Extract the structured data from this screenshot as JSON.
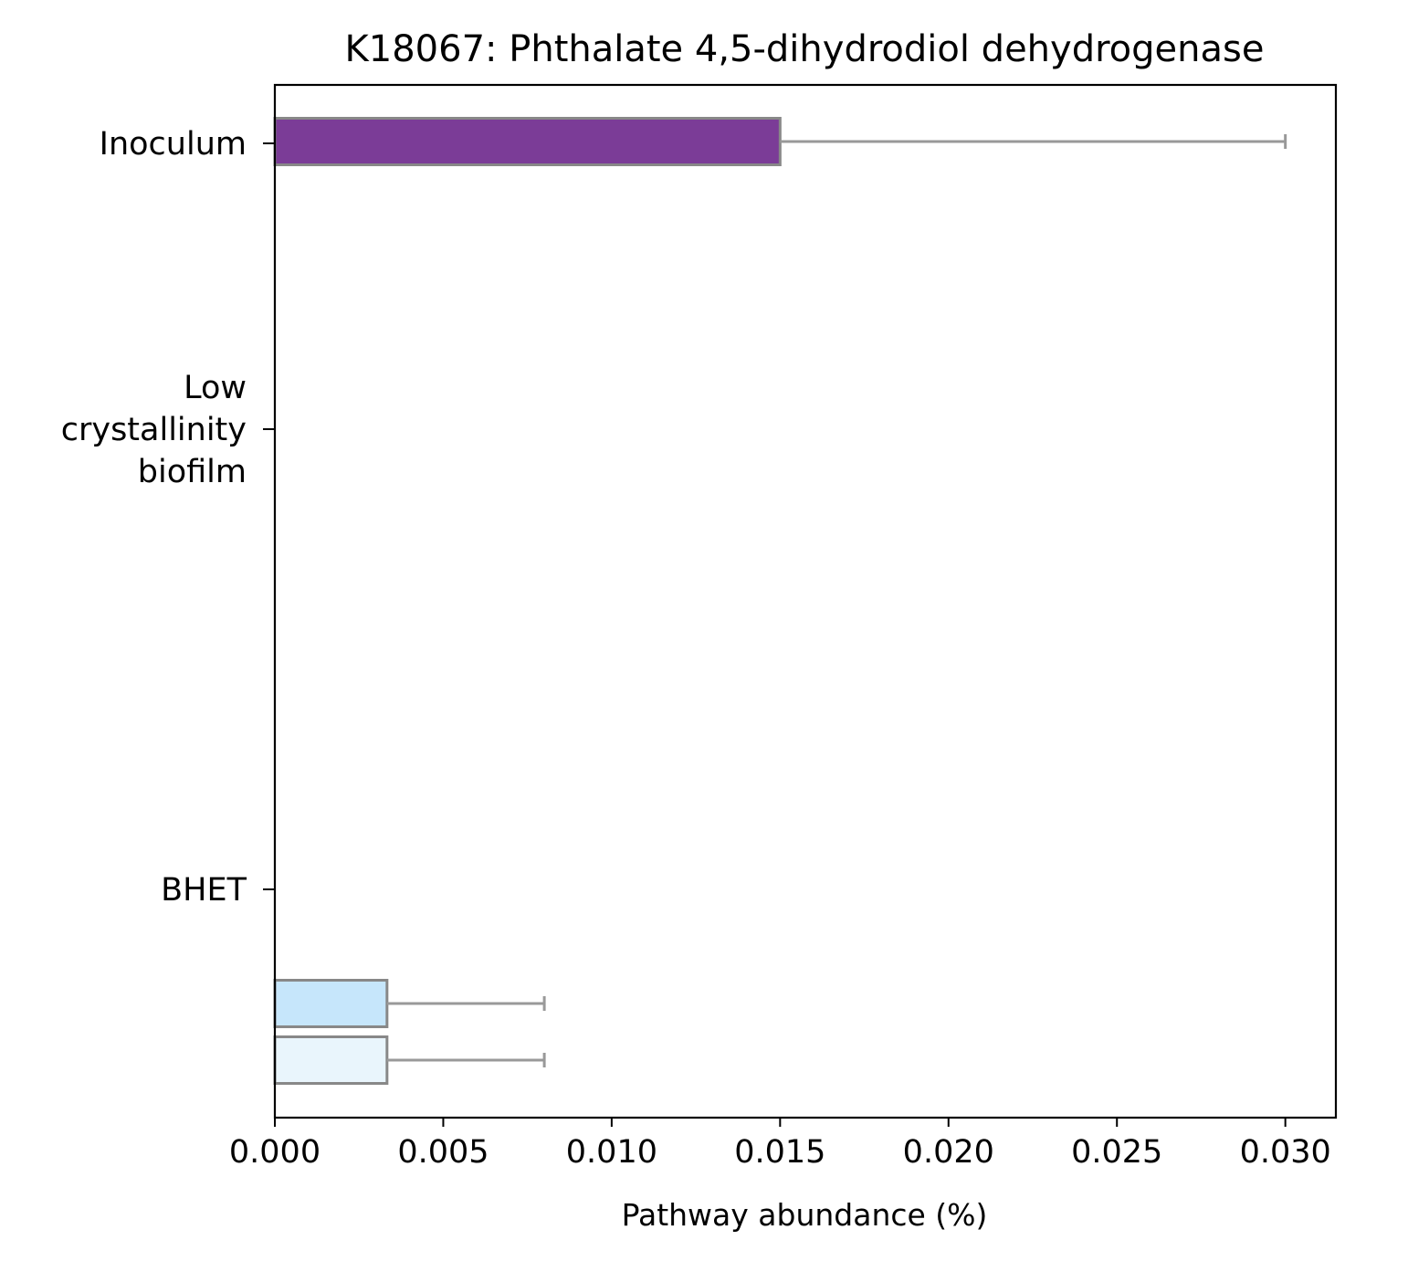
{
  "chart_data": {
    "type": "bar",
    "orientation": "horizontal",
    "title": "K18067: Phthalate 4,5-dihydrodiol dehydrogenase",
    "xlabel": "Pathway abundance (%)",
    "ylabel": "",
    "xlim": [
      0,
      0.0315
    ],
    "x_ticks": [
      "0.000",
      "0.005",
      "0.010",
      "0.015",
      "0.020",
      "0.025",
      "0.030"
    ],
    "categories": [
      {
        "lines": [
          "Inoculum"
        ]
      },
      {
        "lines": [
          "Low",
          "crystallinity",
          "biofilm"
        ]
      },
      {
        "lines": [
          "BHET"
        ]
      }
    ],
    "bars": [
      {
        "category": "Inoculum",
        "value": 0.015,
        "error": 0.015,
        "color": "#7b3c97"
      },
      {
        "category": "BHET",
        "value": 0.00333,
        "error": 0.00467,
        "color": "#c6e6fb"
      },
      {
        "category": "BHET",
        "value": 0.00333,
        "error": 0.00467,
        "color": "#e9f5fc"
      }
    ],
    "bar_edge_color": "#888888",
    "error_bar_color": "#999999",
    "grid": false,
    "legend": "none"
  }
}
